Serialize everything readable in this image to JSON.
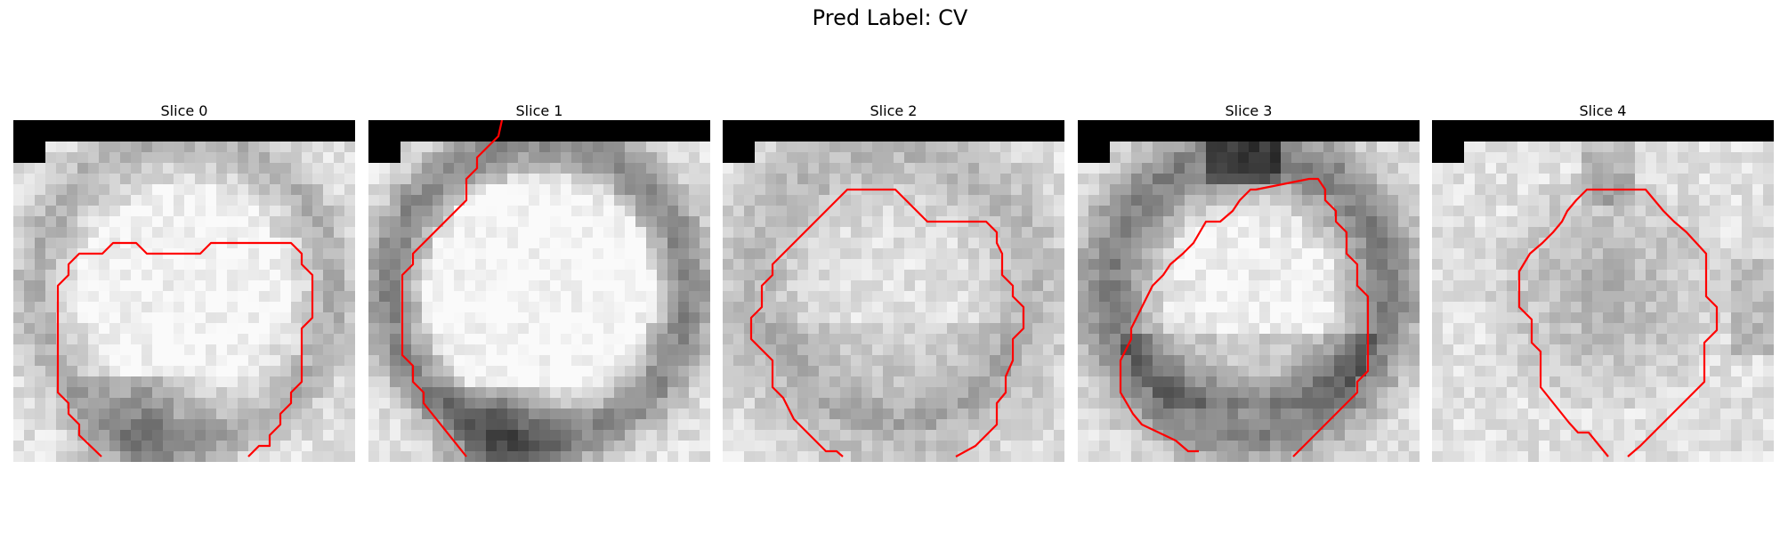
{
  "figure": {
    "title": "Pred Label: CV",
    "colors": {
      "contour": "#ff0000",
      "background": "#ffffff",
      "mask": "#000000"
    },
    "panels": [
      {
        "title": "Slice 0",
        "variant": 0
      },
      {
        "title": "Slice 1",
        "variant": 1
      },
      {
        "title": "Slice 2",
        "variant": 2
      },
      {
        "title": "Slice 3",
        "variant": 3
      },
      {
        "title": "Slice 4",
        "variant": 4
      }
    ]
  }
}
